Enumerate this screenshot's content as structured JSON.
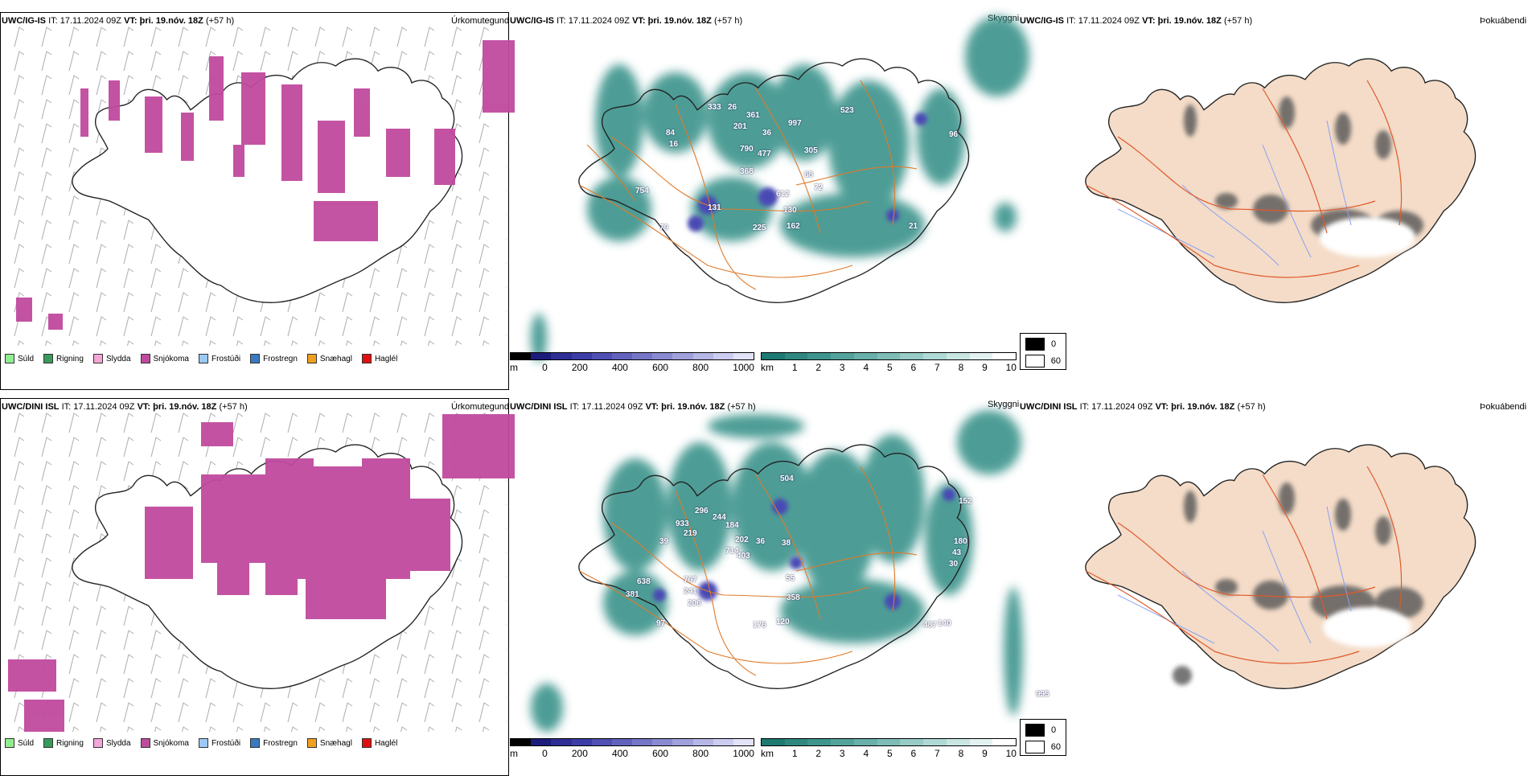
{
  "rows": [
    {
      "model": "UWC/IG-IS",
      "it_label": "IT:",
      "it_value": "17.11.2024 09Z",
      "vt_label": "VT:",
      "vt_value": "þri. 19.nóv. 18Z",
      "lead": "(+57 h)",
      "cloud_numbers": [
        "333",
        "26",
        "361",
        "997",
        "523",
        "84",
        "201",
        "36",
        "16",
        "790",
        "477",
        "305",
        "368",
        "754",
        "72",
        "68",
        "131",
        "130",
        "612",
        "79",
        "225",
        "162",
        "21",
        "96"
      ]
    },
    {
      "model": "UWC/DINI ISL",
      "it_label": "IT:",
      "it_value": "17.11.2024 09Z",
      "vt_label": "VT:",
      "vt_value": "þri. 19.nóv. 18Z",
      "lead": "(+57 h)",
      "cloud_numbers": [
        "933",
        "296",
        "244",
        "184",
        "504",
        "152",
        "219",
        "39",
        "202",
        "714",
        "36",
        "403",
        "38",
        "180",
        "43",
        "30",
        "638",
        "767",
        "241",
        "55",
        "358",
        "381",
        "206",
        "176",
        "120",
        "487",
        "140",
        "97",
        "995"
      ]
    }
  ],
  "panel_titles": {
    "precip": "Úrkomutegund",
    "clouds": "Skyggni",
    "cover": "Þokuábendi"
  },
  "precip_legend": [
    {
      "label": "Súld",
      "color": "#90ee90"
    },
    {
      "label": "Rigning",
      "color": "#3a9a5b"
    },
    {
      "label": "Slydda",
      "color": "#f4a6d7"
    },
    {
      "label": "Snjókoma",
      "color": "#c04a9e"
    },
    {
      "label": "Frostúði",
      "color": "#9cc9f5"
    },
    {
      "label": "Frostregn",
      "color": "#3a7ac0"
    },
    {
      "label": "Snæhagl",
      "color": "#f0a020"
    },
    {
      "label": "Haglél",
      "color": "#e01010"
    }
  ],
  "base_bar": {
    "unit": "m",
    "ticks": [
      "0",
      "200",
      "400",
      "600",
      "800",
      "1000"
    ],
    "colors": [
      "#000000",
      "#1c1c7a",
      "#2e2e95",
      "#3d3da8",
      "#4f4fb4",
      "#6262be",
      "#7676c8",
      "#8a8ad2",
      "#a0a0dc",
      "#b6b6e6",
      "#ccccf0",
      "#e2e2f8"
    ]
  },
  "vis_bar": {
    "unit": "km",
    "ticks": [
      "1",
      "2",
      "3",
      "4",
      "5",
      "6",
      "7",
      "8",
      "9",
      "10"
    ],
    "colors": [
      "#1d7a72",
      "#2e8880",
      "#3e958d",
      "#52a39b",
      "#68b0a9",
      "#7ebdb7",
      "#96cbc6",
      "#afd9d5",
      "#c9e6e3",
      "#e3f2f1",
      "#ffffff"
    ]
  },
  "cloud_legend": {
    "v1": "0",
    "v2": "60"
  },
  "colors": {
    "snow": "#c04a9e",
    "land_cover": "#f4dcc8",
    "cloud": "#2e8c84",
    "road": "#e07a2a",
    "river": "#8aa0f0"
  }
}
